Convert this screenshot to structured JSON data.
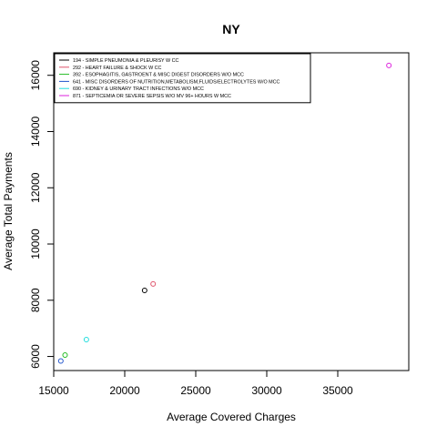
{
  "chart_data": {
    "type": "scatter",
    "title": "NY",
    "xlabel": "Average Covered Charges",
    "ylabel": "Average Total Payments",
    "xlim": [
      15000,
      40000
    ],
    "ylim": [
      5500,
      16800
    ],
    "x_ticks": [
      15000,
      20000,
      25000,
      30000,
      35000
    ],
    "y_ticks": [
      6000,
      8000,
      10000,
      12000,
      14000,
      16000
    ],
    "grid": false,
    "legend_position": "top-left",
    "series": [
      {
        "name": "194 - SIMPLE PNEUMONIA & PLEURISY W CC",
        "color": "#000000",
        "x": 21400,
        "y": 8350
      },
      {
        "name": "292 - HEART FAILURE & SHOCK W CC",
        "color": "#DF536B",
        "x": 22000,
        "y": 8580
      },
      {
        "name": "392 - ESOPHAGITIS, GASTROENT & MISC DIGEST DISORDERS W/O MCC",
        "color": "#22BB22",
        "x": 15800,
        "y": 6050
      },
      {
        "name": "641 - MISC DISORDERS OF NUTRITION,METABOLISM,FLUIDS/ELECTROLYTES W/O MCC",
        "color": "#2255CC",
        "x": 15500,
        "y": 5840
      },
      {
        "name": "690 - KIDNEY & URINARY TRACT INFECTIONS W/O MCC",
        "color": "#22DDDD",
        "x": 17300,
        "y": 6600
      },
      {
        "name": "871 - SEPTICEMIA OR SEVERE SEPSIS W/O MV 96+ HOURS W MCC",
        "color": "#DD22DD",
        "x": 38600,
        "y": 16350
      }
    ]
  }
}
